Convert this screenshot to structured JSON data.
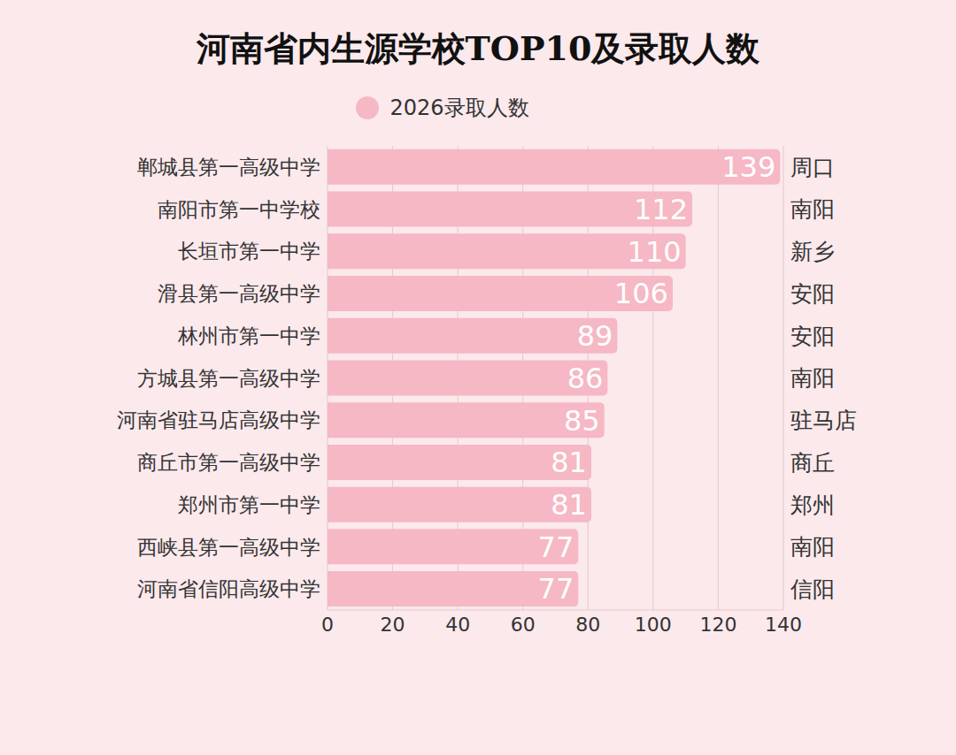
{
  "chart_data": {
    "type": "bar",
    "orientation": "horizontal",
    "title": "河南省内生源学校TOP10及录取人数",
    "categories": [
      "郸城县第一高级中学",
      "南阳市第一中学校",
      "长垣市第一中学",
      "滑县第一高级中学",
      "林州市第一中学",
      "方城县第一高级中学",
      "河南省驻马店高级中学",
      "商丘市第一高级中学",
      "郑州市第一中学",
      "西峡县第一高级中学",
      "河南省信阳高级中学"
    ],
    "regions": [
      "周口",
      "南阳",
      "新乡",
      "安阳",
      "安阳",
      "南阳",
      "驻马店",
      "商丘",
      "郑州",
      "南阳",
      "信阳"
    ],
    "series": [
      {
        "name": "2026录取人数",
        "color": "#f5b8c4",
        "values": [
          139,
          112,
          110,
          106,
          89,
          86,
          85,
          81,
          81,
          77,
          77
        ]
      }
    ],
    "xlim": [
      0,
      140
    ],
    "xticks": [
      0,
      20,
      40,
      60,
      80,
      100,
      120,
      140
    ],
    "grid": true,
    "data_labels": true
  }
}
